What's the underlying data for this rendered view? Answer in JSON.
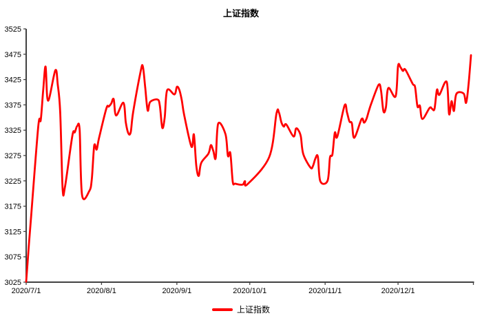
{
  "chart": {
    "title": "上证指数",
    "legend_label": "上证指数"
  },
  "chart_data": {
    "type": "line",
    "title": "上证指数",
    "grid": false,
    "legend_position": "bottom",
    "axis_color": "#404040",
    "label_color": "#000000",
    "ylim": [
      3025,
      3525
    ],
    "y_ticks": [
      3025,
      3075,
      3125,
      3175,
      3225,
      3275,
      3325,
      3375,
      3425,
      3475,
      3525
    ],
    "xlim": [
      "2020/7/1",
      "2021/1/1"
    ],
    "x_ticks": [
      "2020/7/1",
      "2020/8/1",
      "2020/9/1",
      "2020/10/1",
      "2020/11/1",
      "2020/12/1"
    ],
    "series": [
      {
        "name": "上证指数",
        "color": "#FF0000",
        "points": [
          [
            "2020/7/1",
            3025.98
          ],
          [
            "2020/7/2",
            3090.57
          ],
          [
            "2020/7/3",
            3152.81
          ],
          [
            "2020/7/6",
            3332.88
          ],
          [
            "2020/7/7",
            3345.34
          ],
          [
            "2020/7/8",
            3403.44
          ],
          [
            "2020/7/9",
            3450.59
          ],
          [
            "2020/7/10",
            3383.32
          ],
          [
            "2020/7/13",
            3443.29
          ],
          [
            "2020/7/14",
            3414.62
          ],
          [
            "2020/7/15",
            3361.3
          ],
          [
            "2020/7/16",
            3210.1
          ],
          [
            "2020/7/17",
            3214.13
          ],
          [
            "2020/7/20",
            3314.15
          ],
          [
            "2020/7/21",
            3320.89
          ],
          [
            "2020/7/22",
            3333.16
          ],
          [
            "2020/7/23",
            3325.11
          ],
          [
            "2020/7/24",
            3196.77
          ],
          [
            "2020/7/27",
            3205.23
          ],
          [
            "2020/7/28",
            3227.96
          ],
          [
            "2020/7/29",
            3294.55
          ],
          [
            "2020/7/30",
            3286.82
          ],
          [
            "2020/7/31",
            3310.01
          ],
          [
            "2020/8/3",
            3367.97
          ],
          [
            "2020/8/4",
            3371.69
          ],
          [
            "2020/8/5",
            3377.56
          ],
          [
            "2020/8/6",
            3386.46
          ],
          [
            "2020/8/7",
            3354.04
          ],
          [
            "2020/8/10",
            3379.25
          ],
          [
            "2020/8/11",
            3340.29
          ],
          [
            "2020/8/12",
            3319.27
          ],
          [
            "2020/8/13",
            3320.73
          ],
          [
            "2020/8/14",
            3360.1
          ],
          [
            "2020/8/17",
            3438.8
          ],
          [
            "2020/8/18",
            3451.09
          ],
          [
            "2020/8/19",
            3408.13
          ],
          [
            "2020/8/20",
            3363.9
          ],
          [
            "2020/8/21",
            3380.68
          ],
          [
            "2020/8/24",
            3385.64
          ],
          [
            "2020/8/25",
            3373.58
          ],
          [
            "2020/8/26",
            3329.74
          ],
          [
            "2020/8/27",
            3350.11
          ],
          [
            "2020/8/28",
            3403.81
          ],
          [
            "2020/8/31",
            3395.68
          ],
          [
            "2020/9/1",
            3410.61
          ],
          [
            "2020/9/2",
            3404.8
          ],
          [
            "2020/9/3",
            3384.98
          ],
          [
            "2020/9/4",
            3355.37
          ],
          [
            "2020/9/7",
            3292.59
          ],
          [
            "2020/9/8",
            3316.42
          ],
          [
            "2020/9/9",
            3254.63
          ],
          [
            "2020/9/10",
            3234.82
          ],
          [
            "2020/9/11",
            3260.35
          ],
          [
            "2020/9/14",
            3278.81
          ],
          [
            "2020/9/15",
            3295.68
          ],
          [
            "2020/9/16",
            3283.92
          ],
          [
            "2020/9/17",
            3270.44
          ],
          [
            "2020/9/18",
            3338.09
          ],
          [
            "2020/9/21",
            3316.94
          ],
          [
            "2020/9/22",
            3274.3
          ],
          [
            "2020/9/23",
            3279.71
          ],
          [
            "2020/9/24",
            3223.18
          ],
          [
            "2020/9/25",
            3219.42
          ],
          [
            "2020/9/28",
            3217.53
          ],
          [
            "2020/9/29",
            3224.36
          ],
          [
            "2020/9/30",
            3218.05
          ],
          [
            "2020/10/9",
            3272.08
          ],
          [
            "2020/10/12",
            3358.47
          ],
          [
            "2020/10/13",
            3359.75
          ],
          [
            "2020/10/14",
            3340.78
          ],
          [
            "2020/10/15",
            3332.18
          ],
          [
            "2020/10/16",
            3336.36
          ],
          [
            "2020/10/19",
            3312.67
          ],
          [
            "2020/10/20",
            3328.1
          ],
          [
            "2020/10/21",
            3325.02
          ],
          [
            "2020/10/22",
            3312.5
          ],
          [
            "2020/10/23",
            3278.0
          ],
          [
            "2020/10/26",
            3251.12
          ],
          [
            "2020/10/27",
            3254.32
          ],
          [
            "2020/10/28",
            3269.24
          ],
          [
            "2020/10/29",
            3272.73
          ],
          [
            "2020/10/30",
            3224.53
          ],
          [
            "2020/11/2",
            3225.12
          ],
          [
            "2020/11/3",
            3271.07
          ],
          [
            "2020/11/4",
            3277.44
          ],
          [
            "2020/11/5",
            3320.13
          ],
          [
            "2020/11/6",
            3312.16
          ],
          [
            "2020/11/9",
            3373.73
          ],
          [
            "2020/11/10",
            3360.15
          ],
          [
            "2020/11/11",
            3342.2
          ],
          [
            "2020/11/12",
            3338.68
          ],
          [
            "2020/11/13",
            3310.1
          ],
          [
            "2020/11/16",
            3346.97
          ],
          [
            "2020/11/17",
            3339.9
          ],
          [
            "2020/11/18",
            3347.3
          ],
          [
            "2020/11/19",
            3363.09
          ],
          [
            "2020/11/20",
            3377.73
          ],
          [
            "2020/11/23",
            3414.49
          ],
          [
            "2020/11/24",
            3402.82
          ],
          [
            "2020/11/25",
            3362.33
          ],
          [
            "2020/11/26",
            3369.73
          ],
          [
            "2020/11/27",
            3408.31
          ],
          [
            "2020/11/30",
            3391.76
          ],
          [
            "2020/12/1",
            3451.94
          ],
          [
            "2020/12/2",
            3449.38
          ],
          [
            "2020/12/3",
            3442.14
          ],
          [
            "2020/12/4",
            3444.58
          ],
          [
            "2020/12/7",
            3416.6
          ],
          [
            "2020/12/8",
            3410.18
          ],
          [
            "2020/12/9",
            3371.96
          ],
          [
            "2020/12/10",
            3373.28
          ],
          [
            "2020/12/11",
            3347.19
          ],
          [
            "2020/12/14",
            3369.12
          ],
          [
            "2020/12/15",
            3367.23
          ],
          [
            "2020/12/16",
            3366.98
          ],
          [
            "2020/12/17",
            3404.87
          ],
          [
            "2020/12/18",
            3394.9
          ],
          [
            "2020/12/21",
            3420.57
          ],
          [
            "2020/12/22",
            3356.78
          ],
          [
            "2020/12/23",
            3382.32
          ],
          [
            "2020/12/24",
            3363.11
          ],
          [
            "2020/12/25",
            3396.56
          ],
          [
            "2020/12/28",
            3397.29
          ],
          [
            "2020/12/29",
            3379.04
          ],
          [
            "2020/12/30",
            3414.45
          ],
          [
            "2020/12/31",
            3473.07
          ]
        ]
      }
    ]
  }
}
